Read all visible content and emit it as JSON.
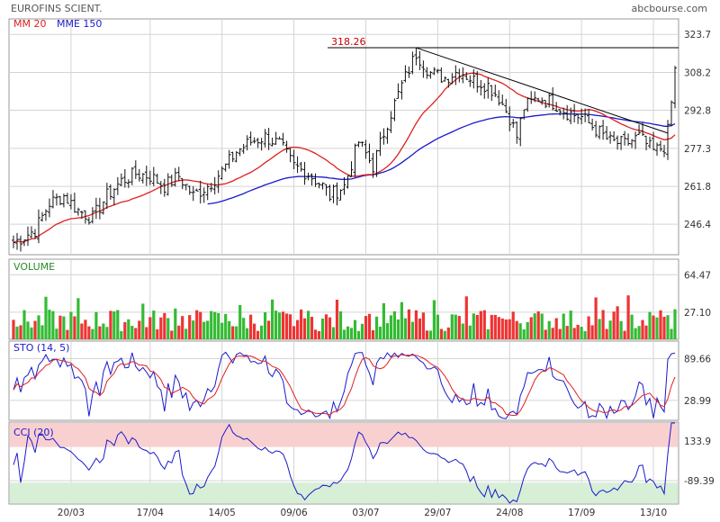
{
  "header": {
    "title": "EUROFINS SCIENT.",
    "source": "abcbourse.com"
  },
  "colors": {
    "mm20": "#e02020",
    "mme150": "#1a1acc",
    "ohlc": "#111111",
    "volume_up": "#33bb33",
    "volume_down": "#ee3333",
    "sto_main": "#1a1acc",
    "sto_signal": "#e02020",
    "cci": "#1a1acc",
    "overbought_zone": "#f9d0d0",
    "oversold_zone": "#d6efd6",
    "grid": "#d4d4d4",
    "annotation": "#cc0000"
  },
  "chart_data": [
    {
      "type": "ohlc",
      "panel": "price",
      "legend": [
        {
          "name": "MM 20",
          "color": "#e02020"
        },
        {
          "name": "MME 150",
          "color": "#1a1acc"
        }
      ],
      "yticks": [
        "323.7",
        "308.2",
        "292.8",
        "277.3",
        "261.8",
        "246.4"
      ],
      "ytick_values": [
        323.7,
        308.2,
        292.8,
        277.3,
        261.8,
        246.4
      ],
      "ylim": [
        234,
        330
      ],
      "xticks": [
        "20/03",
        "17/04",
        "14/05",
        "09/06",
        "03/07",
        "29/07",
        "24/08",
        "17/09",
        "13/10"
      ],
      "xtick_index": [
        16,
        38,
        58,
        78,
        98,
        118,
        138,
        158,
        178
      ],
      "num_sessions": 185,
      "close_anchors": [
        [
          0,
          239
        ],
        [
          6,
          244
        ],
        [
          10,
          255
        ],
        [
          14,
          258
        ],
        [
          18,
          252
        ],
        [
          22,
          249
        ],
        [
          26,
          258
        ],
        [
          30,
          264
        ],
        [
          34,
          267
        ],
        [
          38,
          266
        ],
        [
          42,
          262
        ],
        [
          46,
          266
        ],
        [
          50,
          258
        ],
        [
          54,
          262
        ],
        [
          58,
          268
        ],
        [
          62,
          276
        ],
        [
          66,
          280
        ],
        [
          70,
          282
        ],
        [
          74,
          279
        ],
        [
          78,
          270
        ],
        [
          82,
          267
        ],
        [
          86,
          262
        ],
        [
          88,
          258
        ],
        [
          92,
          262
        ],
        [
          96,
          280
        ],
        [
          100,
          270
        ],
        [
          104,
          288
        ],
        [
          108,
          303
        ],
        [
          112,
          316
        ],
        [
          116,
          308
        ],
        [
          120,
          306
        ],
        [
          124,
          309
        ],
        [
          128,
          305
        ],
        [
          132,
          303
        ],
        [
          135,
          298
        ],
        [
          138,
          290
        ],
        [
          140,
          282
        ],
        [
          142,
          294
        ],
        [
          146,
          298
        ],
        [
          150,
          296
        ],
        [
          154,
          292
        ],
        [
          158,
          290
        ],
        [
          162,
          285
        ],
        [
          166,
          280
        ],
        [
          170,
          279
        ],
        [
          174,
          282
        ],
        [
          178,
          276
        ],
        [
          181,
          278
        ],
        [
          183,
          296
        ],
        [
          184,
          310
        ]
      ],
      "annotation": {
        "label": "318.26",
        "value": 318.26
      },
      "trendline": {
        "from": [
          112,
          318.26
        ],
        "to": [
          182,
          283.5
        ]
      },
      "mme150_start": 54,
      "mme150_seed": 236
    },
    {
      "type": "bar",
      "panel": "volume",
      "title": "VOLUME",
      "yticks": [
        "64.47",
        "27.10"
      ],
      "ytick_values": [
        64.47,
        27.1
      ],
      "ylim": [
        0,
        80
      ]
    },
    {
      "type": "line",
      "panel": "stochastic",
      "title": "STO (14, 5)",
      "yticks": [
        "89.66",
        "28.99"
      ],
      "ytick_values": [
        89.66,
        28.99
      ],
      "ylim": [
        0,
        115
      ]
    },
    {
      "type": "line",
      "panel": "cci",
      "title": "CCI (20)",
      "yticks": [
        "133.9",
        "-89.39"
      ],
      "ytick_values": [
        133.9,
        -89.39
      ],
      "ylim": [
        -220,
        240
      ],
      "overbought": 100,
      "oversold": -100
    }
  ]
}
